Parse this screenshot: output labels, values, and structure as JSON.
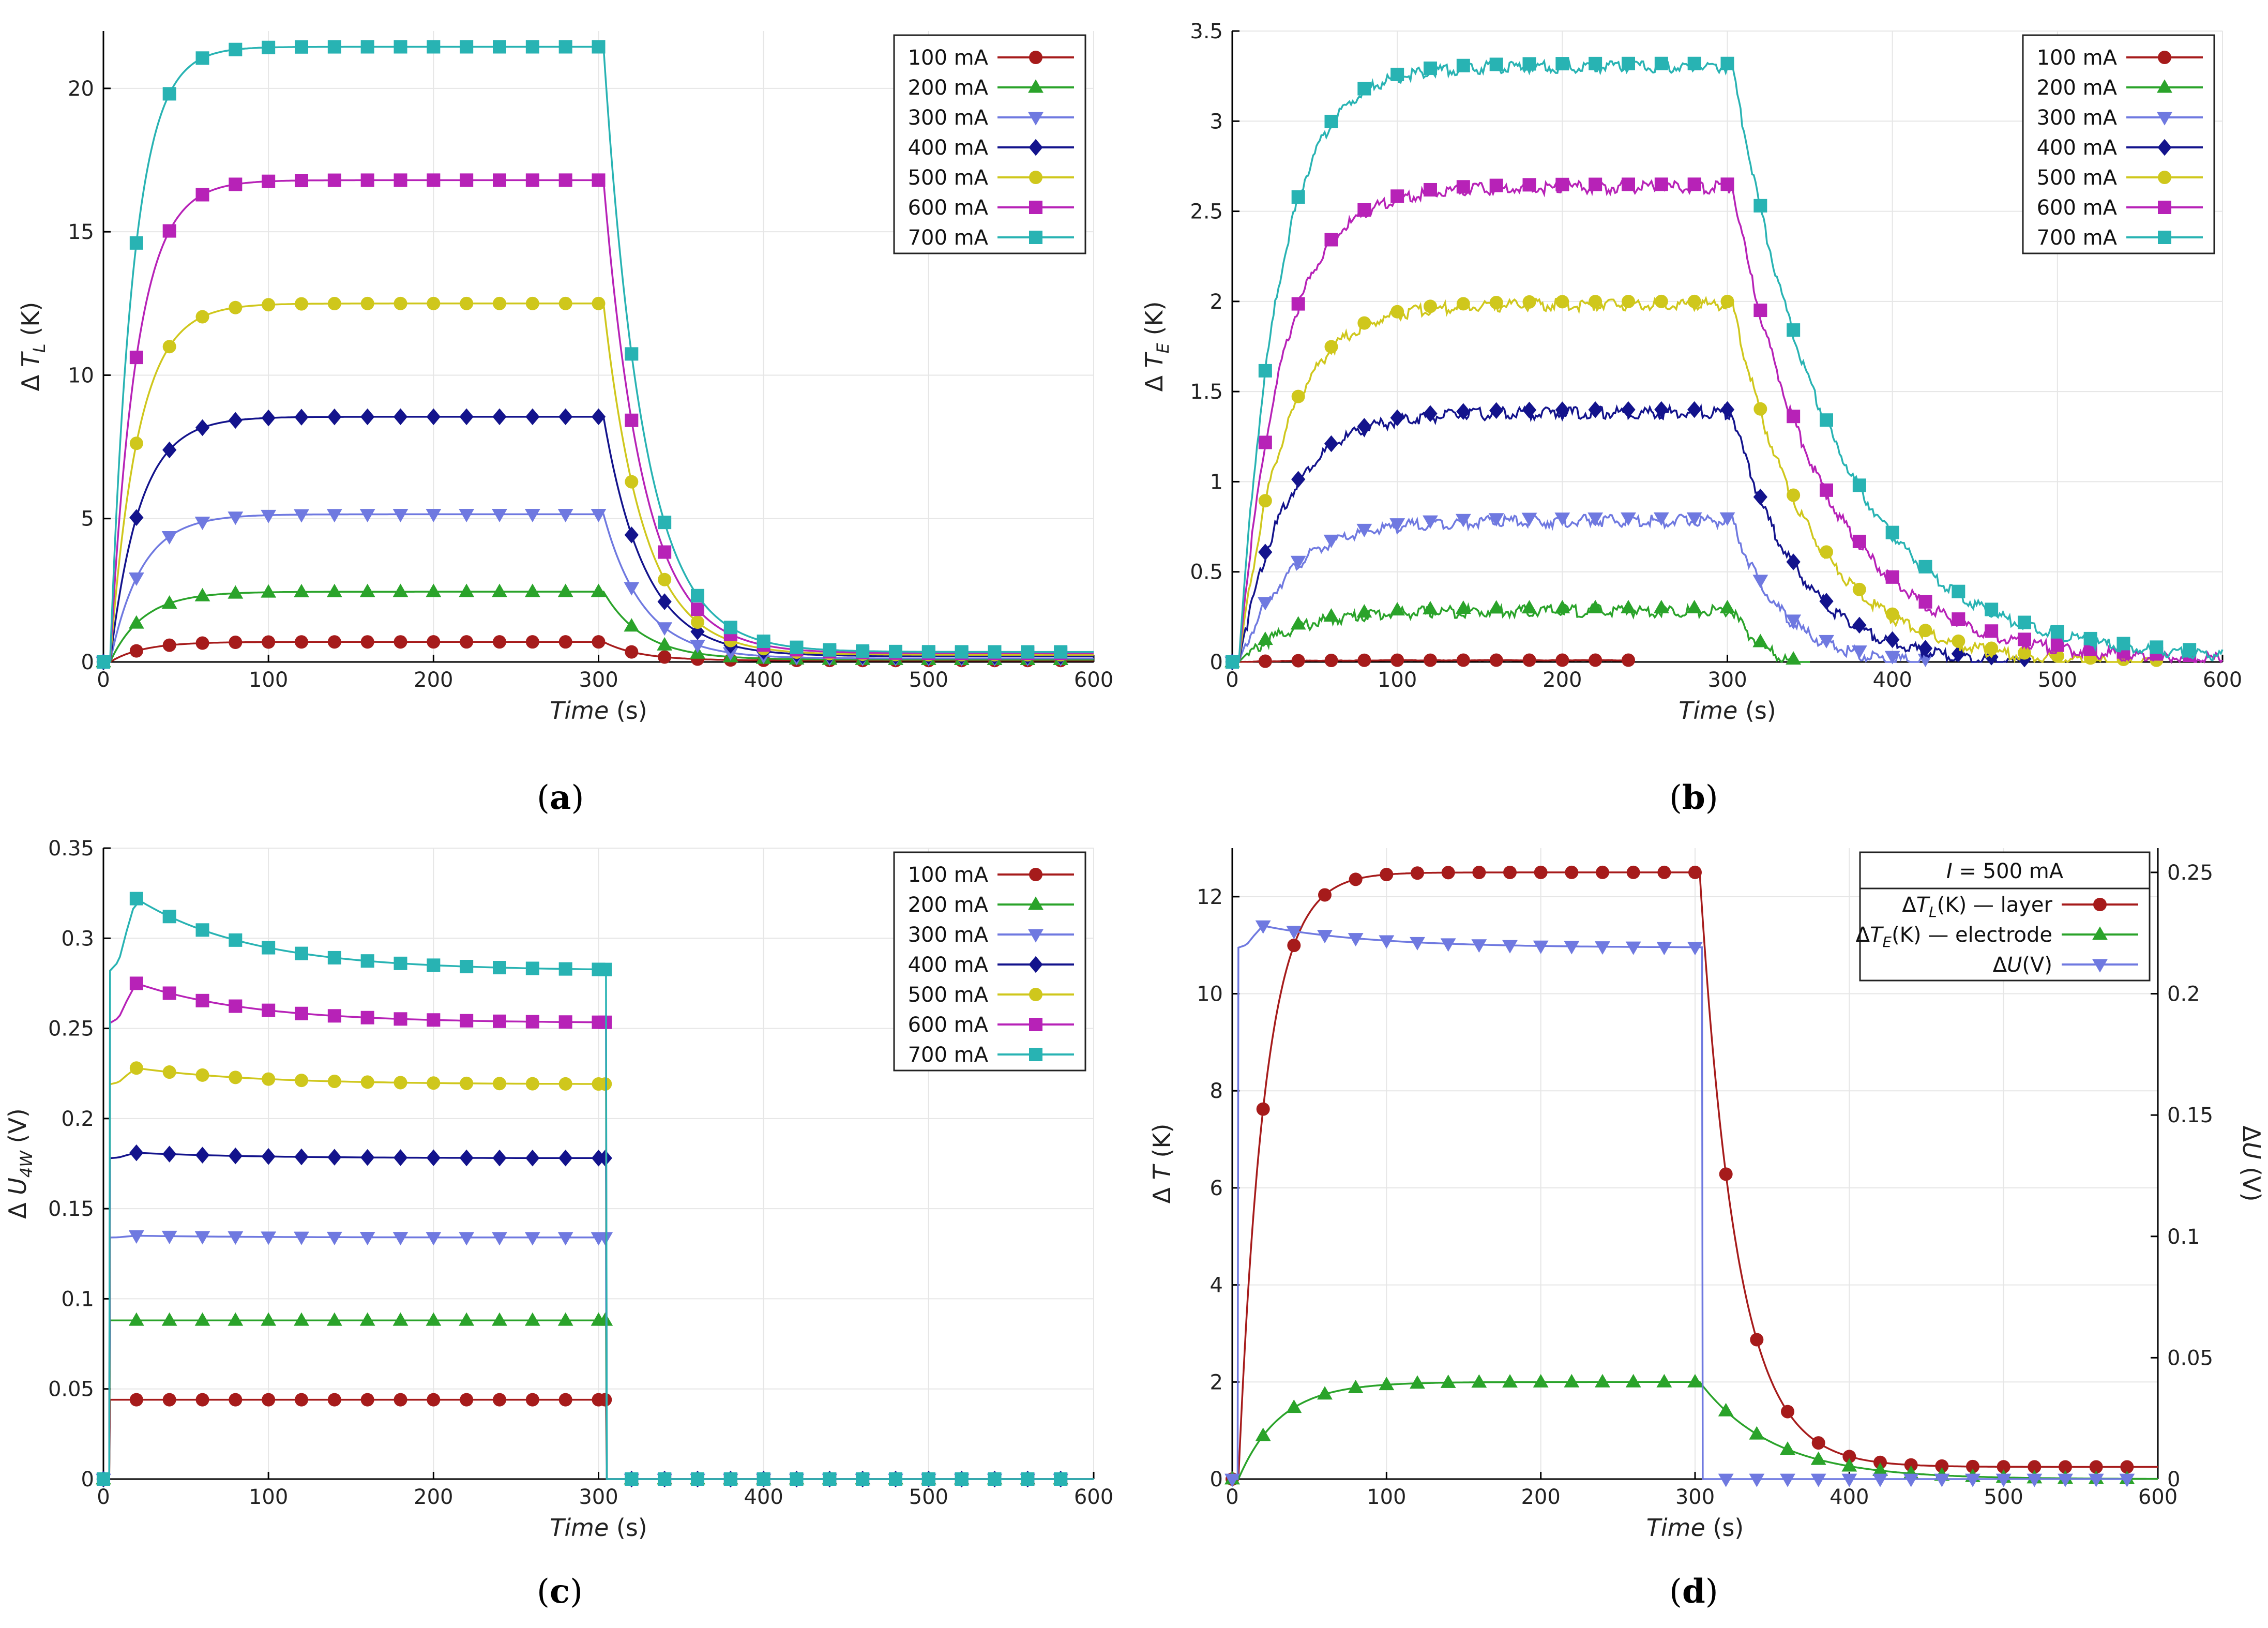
{
  "figure": {
    "captions": [
      "(a)",
      "(b)",
      "(c)",
      "(d)"
    ],
    "caption_letters": [
      "a",
      "b",
      "c",
      "d"
    ]
  },
  "chart_data": [
    {
      "id": "a",
      "type": "line",
      "xlabel": "Time",
      "xlabel_unit": " (s)",
      "ylabel_prefix": "Δ",
      "ylabel_var": "T",
      "ylabel_sub": "L",
      "ylabel_unit": " (K)",
      "xlim": [
        0,
        600
      ],
      "ylim": [
        0,
        22
      ],
      "xticks": [
        0,
        100,
        200,
        300,
        400,
        500,
        600
      ],
      "yticks": [
        0,
        5,
        10,
        15,
        20
      ],
      "ytick_labels": [
        "0",
        "5",
        "10",
        "15",
        "20"
      ],
      "grid": true,
      "legend": "top-right",
      "series": [
        {
          "name": "100 mA",
          "color": "#a61b1b",
          "marker": "circle",
          "steady": 0.7,
          "tau_on": 20,
          "tau_off": 22,
          "residual": 0.05
        },
        {
          "name": "200 mA",
          "color": "#2aa32a",
          "marker": "triangle-up",
          "steady": 2.45,
          "tau_on": 20,
          "tau_off": 24,
          "residual": 0.08
        },
        {
          "name": "300 mA",
          "color": "#6f79e0",
          "marker": "triangle-down",
          "steady": 5.15,
          "tau_on": 19,
          "tau_off": 24,
          "residual": 0.12
        },
        {
          "name": "400 mA",
          "color": "#13138c",
          "marker": "diamond",
          "steady": 8.55,
          "tau_on": 18,
          "tau_off": 25,
          "residual": 0.2
        },
        {
          "name": "500 mA",
          "color": "#cfc71c",
          "marker": "circle",
          "steady": 12.5,
          "tau_on": 17,
          "tau_off": 24,
          "residual": 0.25
        },
        {
          "name": "600 mA",
          "color": "#b722b7",
          "marker": "square",
          "steady": 16.8,
          "tau_on": 16,
          "tau_off": 24,
          "residual": 0.3
        },
        {
          "name": "700 mA",
          "color": "#28b3b3",
          "marker": "square",
          "steady": 21.45,
          "tau_on": 14,
          "tau_off": 24,
          "residual": 0.35
        }
      ]
    },
    {
      "id": "b",
      "type": "line",
      "xlabel": "Time",
      "xlabel_unit": " (s)",
      "ylabel_prefix": "Δ",
      "ylabel_var": "T",
      "ylabel_sub": "E",
      "ylabel_unit": " (K)",
      "xlim": [
        0,
        600
      ],
      "ylim": [
        0,
        3.5
      ],
      "xticks": [
        0,
        100,
        200,
        300,
        400,
        500,
        600
      ],
      "yticks": [
        0,
        0.5,
        1,
        1.5,
        2,
        2.5,
        3,
        3.5
      ],
      "ytick_labels": [
        "0",
        "0.5",
        "1",
        "1.5",
        "2",
        "2.5",
        "3",
        "3.5"
      ],
      "grid": true,
      "legend": "top-right",
      "series": [
        {
          "name": "100 mA",
          "color": "#a61b1b",
          "marker": "circle",
          "steady": 0.01,
          "tau_on": 30,
          "tau_off": 20,
          "residual": 0,
          "max_x": 240
        },
        {
          "name": "200 mA",
          "color": "#2aa32a",
          "marker": "triangle-up",
          "steady": 0.3,
          "tau_on": 30,
          "tau_off": 22,
          "residual": -0.05,
          "max_x": 350
        },
        {
          "name": "300 mA",
          "color": "#6f79e0",
          "marker": "triangle-down",
          "steady": 0.8,
          "tau_on": 30,
          "tau_off": 30,
          "residual": 0,
          "max_x": 420
        },
        {
          "name": "400 mA",
          "color": "#13138c",
          "marker": "diamond",
          "steady": 1.4,
          "tau_on": 28,
          "tau_off": 40,
          "residual": 0,
          "max_x": 480
        },
        {
          "name": "500 mA",
          "color": "#cfc71c",
          "marker": "circle",
          "steady": 2.0,
          "tau_on": 27,
          "tau_off": 48,
          "residual": 0,
          "max_x": 560
        },
        {
          "name": "600 mA",
          "color": "#b722b7",
          "marker": "square",
          "steady": 2.65,
          "tau_on": 26,
          "tau_off": 55,
          "residual": 0.02,
          "max_x": 600
        },
        {
          "name": "700 mA",
          "color": "#28b3b3",
          "marker": "square",
          "steady": 3.32,
          "tau_on": 24,
          "tau_off": 62,
          "residual": 0.03,
          "max_x": 600
        }
      ]
    },
    {
      "id": "c",
      "type": "line",
      "xlabel": "Time",
      "xlabel_unit": " (s)",
      "ylabel_prefix": "Δ",
      "ylabel_var": "U",
      "ylabel_sub": "4W",
      "ylabel_unit": " (V)",
      "xlim": [
        0,
        600
      ],
      "ylim": [
        0,
        0.35
      ],
      "xticks": [
        0,
        100,
        200,
        300,
        400,
        500,
        600
      ],
      "yticks": [
        0,
        0.05,
        0.1,
        0.15,
        0.2,
        0.25,
        0.3,
        0.35
      ],
      "ytick_labels": [
        "0",
        "0.05",
        "0.1",
        "0.15",
        "0.2",
        "0.25",
        "0.3",
        "0.35"
      ],
      "grid": true,
      "legend": "top-right",
      "series": [
        {
          "name": "100 mA",
          "color": "#a61b1b",
          "marker": "circle",
          "peak": 0.044,
          "steady": 0.044
        },
        {
          "name": "200 mA",
          "color": "#2aa32a",
          "marker": "triangle-up",
          "peak": 0.088,
          "steady": 0.088
        },
        {
          "name": "300 mA",
          "color": "#6f79e0",
          "marker": "triangle-down",
          "peak": 0.135,
          "steady": 0.134
        },
        {
          "name": "400 mA",
          "color": "#13138c",
          "marker": "diamond",
          "peak": 0.181,
          "steady": 0.178
        },
        {
          "name": "500 mA",
          "color": "#cfc71c",
          "marker": "circle",
          "peak": 0.228,
          "steady": 0.219
        },
        {
          "name": "600 mA",
          "color": "#b722b7",
          "marker": "square",
          "peak": 0.275,
          "steady": 0.253
        },
        {
          "name": "700 mA",
          "color": "#28b3b3",
          "marker": "square",
          "peak": 0.322,
          "steady": 0.282
        }
      ]
    },
    {
      "id": "d",
      "type": "line",
      "xlabel": "Time",
      "xlabel_unit": " (s)",
      "ylabel_prefix": "Δ",
      "ylabel_var": "T",
      "ylabel_sub": "",
      "ylabel_unit": " (K)",
      "y2label_prefix": "Δ",
      "y2label_var": "U",
      "y2label_unit": " (V)",
      "xlim": [
        0,
        600
      ],
      "ylim": [
        0,
        13
      ],
      "y2lim": [
        0,
        0.26
      ],
      "xticks": [
        0,
        100,
        200,
        300,
        400,
        500,
        600
      ],
      "yticks": [
        0,
        2,
        4,
        6,
        8,
        10,
        12
      ],
      "ytick_labels": [
        "0",
        "2",
        "4",
        "6",
        "8",
        "10",
        "12"
      ],
      "y2ticks": [
        0,
        0.05,
        0.1,
        0.15,
        0.2,
        0.25
      ],
      "y2tick_labels": [
        "0",
        "0.05",
        "0.1",
        "0.15",
        "0.2",
        "0.25"
      ],
      "grid": true,
      "legend": "top-right",
      "legend_title_var": "I",
      "legend_title_rest": " = 500 mA",
      "series": [
        {
          "name": "ΔT_L(K) — layer",
          "label_pre": "Δ",
          "label_var": "T",
          "label_sub": "L",
          "label_post": "(K) — layer",
          "color": "#a61b1b",
          "marker": "circle",
          "steady": 12.5,
          "tau_on": 17,
          "tau_off": 24,
          "residual": 0.25,
          "axis": "left"
        },
        {
          "name": "ΔT_E(K) — electrode",
          "label_pre": "Δ",
          "label_var": "T",
          "label_sub": "E",
          "label_post": "(K) — electrode",
          "color": "#2aa32a",
          "marker": "triangle-up",
          "steady": 2.0,
          "tau_on": 27,
          "tau_off": 48,
          "residual": 0.0,
          "axis": "left"
        },
        {
          "name": "ΔU(V)",
          "label_pre": "Δ",
          "label_var": "U",
          "label_sub": "",
          "label_post": "(V)",
          "color": "#6f79e0",
          "marker": "triangle-down",
          "peak": 0.228,
          "steady": 0.219,
          "axis": "right"
        }
      ]
    }
  ]
}
